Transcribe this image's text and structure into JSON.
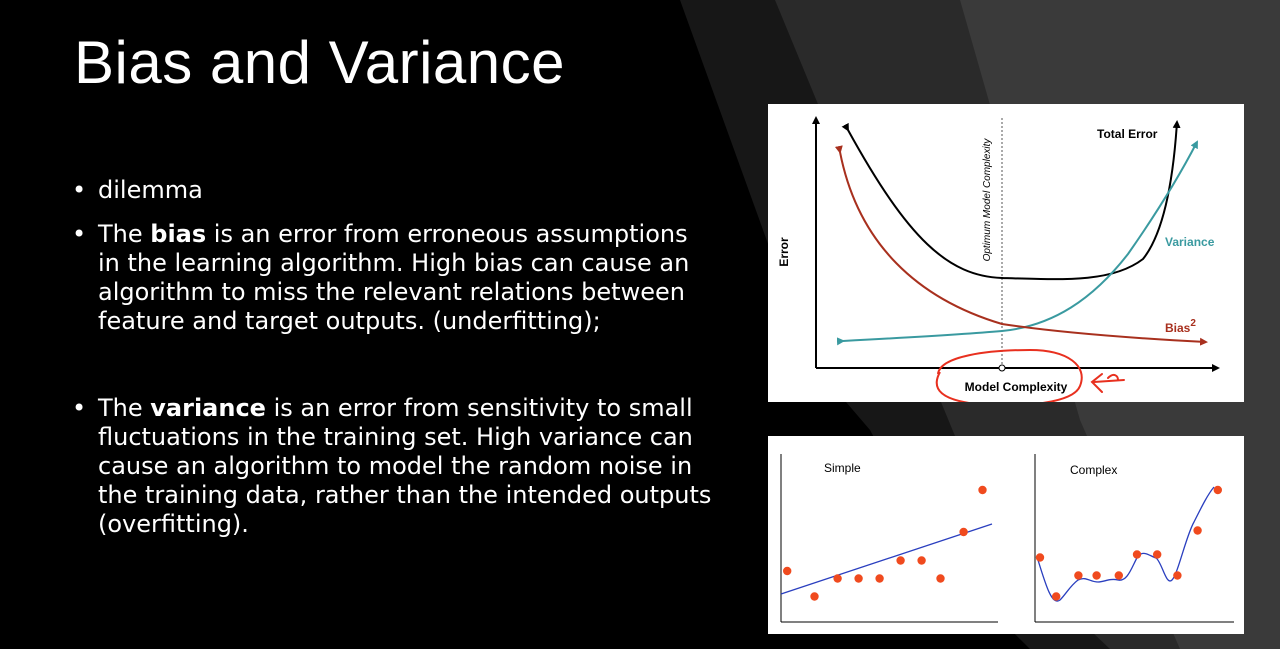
{
  "slide": {
    "title": "Bias and Variance",
    "bullets": {
      "b1": "dilemma",
      "b2": {
        "pre": "The ",
        "bold": "bias",
        "post": " is an error from erroneous assumptions in the learning algorithm. High bias can cause an algorithm to miss the relevant relations between feature and target outputs. (underfitting);"
      },
      "b3": {
        "pre": "The ",
        "bold": "variance",
        "post": " is an error from sensitivity to small fluctuations in the training set. High variance can cause an algorithm to model the random noise in the training data, rather than the intended outputs (overfitting)."
      }
    }
  },
  "figure_tradeoff": {
    "ylabel": "Error",
    "xlabel": "Model Complexity",
    "vline_label": "Optimum Model Complexity",
    "total_label": "Total Error",
    "variance_label": "Variance",
    "bias_label": "Bias",
    "bias_sup": "2",
    "colors": {
      "total": "#000000",
      "variance": "#3a9aa0",
      "bias": "#a8301e",
      "circle": "#e8301f"
    }
  },
  "figure_fits": {
    "simple_label": "Simple",
    "complex_label": "Complex",
    "colors": {
      "points": "#f04a1e",
      "line": "#2a3fbf"
    }
  },
  "chart_data": [
    {
      "type": "line",
      "xlabel": "Model Complexity",
      "ylabel": "Error",
      "annotations": [
        "Optimum Model Complexity"
      ],
      "series": [
        {
          "name": "Total Error",
          "values": []
        },
        {
          "name": "Variance",
          "values": []
        },
        {
          "name": "Bias²",
          "values": []
        }
      ]
    },
    {
      "type": "scatter",
      "title": "Simple",
      "x": [
        0.2,
        1.5,
        2.6,
        3.6,
        4.6,
        5.6,
        6.6,
        7.5,
        8.6,
        9.5
      ],
      "y": [
        3.0,
        1.3,
        2.5,
        2.5,
        2.5,
        3.7,
        3.7,
        2.5,
        5.6,
        8.4
      ],
      "fit": "linear"
    },
    {
      "type": "scatter",
      "title": "Complex",
      "x": [
        0.2,
        1.0,
        2.1,
        3.0,
        4.1,
        5.0,
        6.0,
        7.0,
        8.0,
        9.0
      ],
      "y": [
        3.9,
        1.3,
        2.7,
        2.7,
        2.7,
        4.1,
        4.1,
        2.7,
        5.7,
        8.4
      ],
      "fit": "interpolating"
    }
  ]
}
